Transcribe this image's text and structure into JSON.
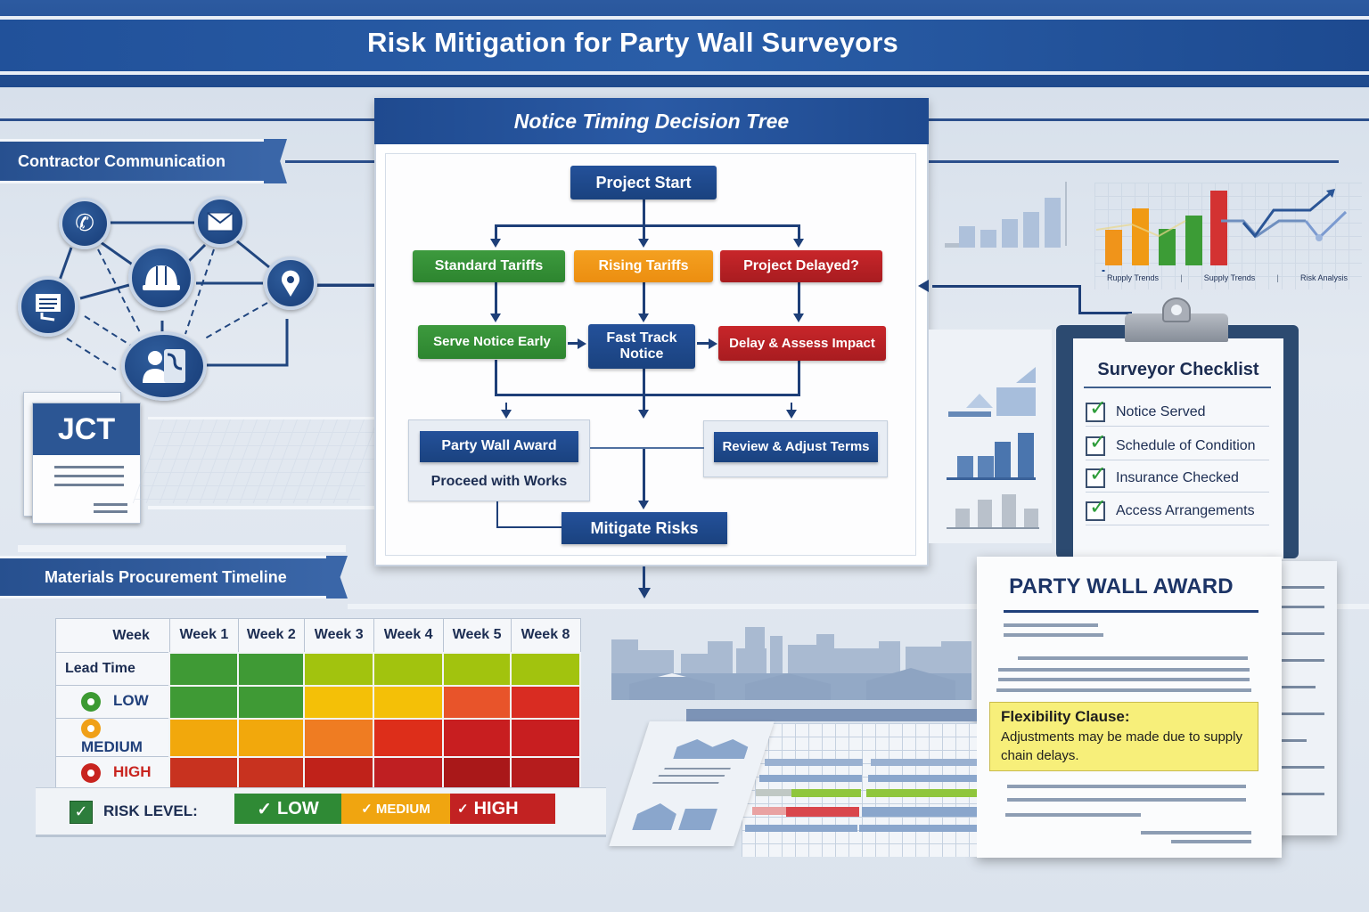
{
  "header": {
    "title": "Risk Mitigation for Party Wall Surveyors"
  },
  "contractor_communication": {
    "title": "Contractor Communication",
    "nodes": [
      {
        "icon": "phone-icon",
        "label": "Phone"
      },
      {
        "icon": "envelope-icon",
        "label": "Email"
      },
      {
        "icon": "hard-hat-icon",
        "label": "Contractor"
      },
      {
        "icon": "location-pin-icon",
        "label": "Site"
      },
      {
        "icon": "document-icon",
        "label": "Documents"
      },
      {
        "icon": "surveyor-icon",
        "label": "Surveyor"
      }
    ],
    "jct_doc": {
      "label": "JCT"
    }
  },
  "decision_tree": {
    "title": "Notice Timing Decision Tree",
    "root": "Project Start",
    "branches": [
      {
        "label": "Standard Tariffs",
        "color": "#349133",
        "next": "Serve Notice Early"
      },
      {
        "label": "Rising Tariffs",
        "color": "#f29a1a",
        "next": "Fast Track Notice"
      },
      {
        "label": "Project Delayed?",
        "color": "#bb2226",
        "next": "Delay & Assess Impact"
      }
    ],
    "outcomes": {
      "left_title": "Party Wall Award",
      "left_sub": "Proceed with Works",
      "right_title": "Review & Adjust Terms",
      "final": "Mitigate Risks"
    }
  },
  "trend_charts": {
    "labels": [
      "Rupply Trends",
      "Supply Trends",
      "Risk Analysis"
    ]
  },
  "checklist": {
    "title": "Surveyor Checklist",
    "items": [
      {
        "label": "Notice Served",
        "checked": true
      },
      {
        "label": "Schedule of Condition",
        "checked": true
      },
      {
        "label": "Insurance Checked",
        "checked": true
      },
      {
        "label": "Access Arrangements",
        "checked": true
      }
    ]
  },
  "award_doc": {
    "title": "PARTY WALL AWARD",
    "clause_title": "Flexibility Clause:",
    "clause_text": "Adjustments may be made due to supply chain delays."
  },
  "procurement": {
    "title": "Materials Procurement Timeline",
    "corner_header": "Week",
    "columns": [
      "Week 1",
      "Week 2",
      "Week 3",
      "Week 4",
      "Week 5",
      "Week 8"
    ],
    "rows": [
      {
        "label": "Lead Time",
        "dot": null,
        "label_color": "#1c2d52",
        "cells": [
          "#3f9a35",
          "#3f9a35",
          "#a2c30e",
          "#a2c30e",
          "#a2c30e",
          "#a2c30e"
        ]
      },
      {
        "label": "LOW",
        "dot": "#3c9a32",
        "label_color": "#1f3f7a",
        "cells": [
          "#3f9a35",
          "#3f9a35",
          "#f4c007",
          "#f4c007",
          "#e8542a",
          "#d92c22"
        ]
      },
      {
        "label": "MEDIUM",
        "dot": "#f0a018",
        "label_color": "#1f3f7a",
        "cells": [
          "#f2a80c",
          "#f2a80c",
          "#ef7c22",
          "#dd2e1a",
          "#c81e20",
          "#c81e20"
        ]
      },
      {
        "label": "HIGH",
        "dot": "#c8241f",
        "label_color": "#c8241f",
        "cells": [
          "#c8321f",
          "#c8321f",
          "#c0221a",
          "#bf1f22",
          "#a91819",
          "#b51c1d"
        ]
      }
    ],
    "legend": {
      "label": "RISK LEVEL:",
      "levels": [
        {
          "label": "LOW",
          "color": "#2f8a35"
        },
        {
          "label": "MEDIUM",
          "color": "#f0a510"
        },
        {
          "label": "HIGH",
          "color": "#c22222"
        }
      ]
    }
  }
}
